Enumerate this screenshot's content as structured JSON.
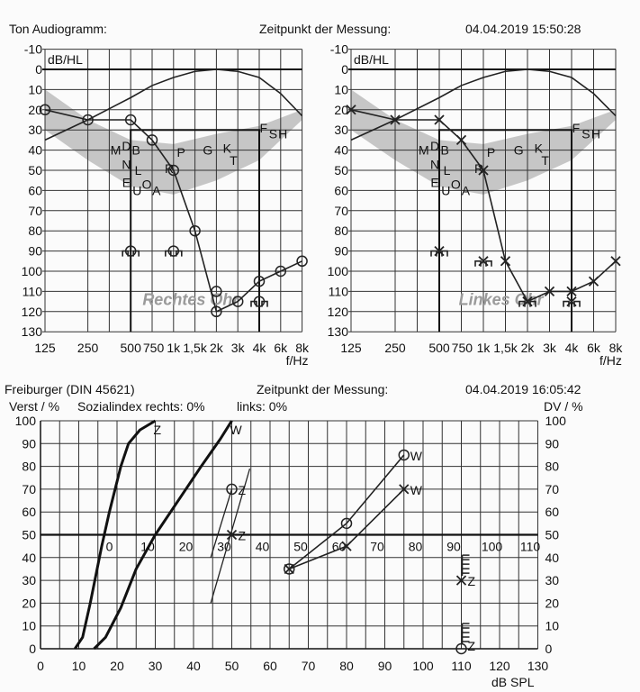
{
  "header": {
    "title": "Ton Audiogramm:",
    "measure_label": "Zeitpunkt der Messung:",
    "timestamp": "04.04.2019 15:50:28"
  },
  "speech_header": {
    "title": "Freiburger (DIN 45621)",
    "measure_label": "Zeitpunkt der Messung:",
    "timestamp": "04.04.2019 16:05:42",
    "y_label": "Verst / %",
    "social_index": "Sozialindex rechts: 0%",
    "links": "links: 0%",
    "y2_label": "DV / %"
  },
  "chart_data": [
    {
      "type": "line",
      "title": "Rechtes Ohr",
      "ylabel": "dB/HL",
      "xlabel": "f/Hz",
      "ylim": [
        -10,
        130
      ],
      "x_ticks": [
        "125",
        "250",
        "500",
        "750",
        "1k",
        "1,5k",
        "2k",
        "3k",
        "4k",
        "6k",
        "8k"
      ],
      "y_ticks": [
        "-10",
        "0",
        "10",
        "20",
        "30",
        "40",
        "50",
        "60",
        "70",
        "80",
        "90",
        "100",
        "110",
        "120",
        "130"
      ],
      "phonemes": [
        "M",
        "D",
        "B",
        "N",
        "L",
        "E",
        "U",
        "O",
        "A",
        "R",
        "P",
        "G",
        "K",
        "T",
        "F",
        "S",
        "H"
      ],
      "air_conduction": {
        "marker": "circle",
        "x": [
          "125",
          "250",
          "500",
          "750",
          "1k",
          "1,5k",
          "2k",
          "3k",
          "4k",
          "6k",
          "8k"
        ],
        "values": [
          20,
          25,
          25,
          35,
          50,
          80,
          120,
          115,
          105,
          100,
          95
        ]
      },
      "extra_points": [
        {
          "x": "2k",
          "value": 110
        }
      ],
      "bone_conduction": {
        "marker": "circle-bracket",
        "x": [
          "500",
          "1k",
          "4k"
        ],
        "values": [
          90,
          90,
          115
        ]
      },
      "uncomfortable_box": {
        "from": "500",
        "to": "4k",
        "level": 30
      }
    },
    {
      "type": "line",
      "title": "Linkes Ohr",
      "ylabel": "dB/HL",
      "xlabel": "f/Hz",
      "ylim": [
        -10,
        130
      ],
      "x_ticks": [
        "125",
        "250",
        "500",
        "750",
        "1k",
        "1,5k",
        "2k",
        "3k",
        "4k",
        "6k",
        "8k"
      ],
      "y_ticks": [
        "-10",
        "0",
        "10",
        "20",
        "30",
        "40",
        "50",
        "60",
        "70",
        "80",
        "90",
        "100",
        "110",
        "120",
        "130"
      ],
      "phonemes": [
        "M",
        "D",
        "B",
        "N",
        "L",
        "E",
        "U",
        "O",
        "A",
        "R",
        "P",
        "G",
        "K",
        "T",
        "F",
        "S",
        "H"
      ],
      "air_conduction": {
        "marker": "x",
        "x": [
          "125",
          "250",
          "500",
          "750",
          "1k",
          "1,5k",
          "2k",
          "3k",
          "4k",
          "6k",
          "8k"
        ],
        "values": [
          20,
          25,
          25,
          35,
          50,
          95,
          115,
          110,
          110,
          105,
          95
        ]
      },
      "extra_points": [],
      "bone_conduction": {
        "marker": "x-bracket",
        "x": [
          "500",
          "1k",
          "2k",
          "4k"
        ],
        "values": [
          90,
          95,
          115,
          115
        ]
      },
      "uncomfortable_box": {
        "from": "500",
        "to": "4k",
        "level": 30
      }
    },
    {
      "type": "line",
      "title": "Freiburger (DIN 45621)",
      "xlabel": "dB SPL",
      "ylabel": "Verst / %",
      "y2label": "DV / %",
      "xlim": [
        0,
        130
      ],
      "ylim": [
        0,
        100
      ],
      "x_ticks": [
        "0",
        "10",
        "20",
        "30",
        "40",
        "50",
        "60",
        "70",
        "80",
        "90",
        "100",
        "110",
        "120",
        "130"
      ],
      "y_ticks": [
        "0",
        "10",
        "20",
        "30",
        "40",
        "50",
        "60",
        "70",
        "80",
        "90",
        "100"
      ],
      "y2_ticks": [
        "100",
        "90",
        "80",
        "70",
        "60",
        "50",
        "40",
        "30",
        "20",
        "10",
        "0"
      ],
      "hl_ticks": [
        "0",
        "10",
        "20",
        "30",
        "40",
        "50",
        "60",
        "70",
        "80",
        "90",
        "100",
        "110"
      ],
      "normal_curves": [
        {
          "name": "Z",
          "points": [
            [
              9,
              0
            ],
            [
              11,
              5
            ],
            [
              13,
              20
            ],
            [
              16,
              45
            ],
            [
              18,
              60
            ],
            [
              21,
              80
            ],
            [
              23,
              90
            ],
            [
              26,
              96
            ],
            [
              30,
              100
            ]
          ]
        },
        {
          "name": "W",
          "points": [
            [
              14,
              0
            ],
            [
              17,
              5
            ],
            [
              21,
              18
            ],
            [
              25,
              35
            ],
            [
              30,
              50
            ],
            [
              36,
              65
            ],
            [
              42,
              80
            ],
            [
              47,
              92
            ],
            [
              50,
              100
            ]
          ]
        }
      ],
      "ref_lines": [
        [
          [
            44.5,
            40
          ],
          [
            50,
            70
          ]
        ],
        [
          [
            44.5,
            20
          ],
          [
            54.7,
            79
          ]
        ]
      ],
      "series": [
        {
          "name": "W",
          "ear": "right",
          "marker": "circle",
          "points": [
            [
              65,
              35
            ],
            [
              80,
              55
            ],
            [
              95,
              85
            ]
          ]
        },
        {
          "name": "W",
          "ear": "left",
          "marker": "x",
          "points": [
            [
              65,
              35
            ],
            [
              80,
              45
            ],
            [
              95,
              70
            ]
          ]
        },
        {
          "name": "Z",
          "ear": "right",
          "marker": "circle",
          "points": [
            [
              50,
              70
            ]
          ]
        },
        {
          "name": "Z",
          "ear": "left",
          "marker": "x",
          "points": [
            [
              50,
              50
            ]
          ]
        },
        {
          "name": "Z",
          "ear": "left",
          "marker": "x-limit",
          "points": [
            [
              110,
              30
            ]
          ]
        },
        {
          "name": "Z",
          "ear": "right",
          "marker": "circle-limit",
          "points": [
            [
              110,
              0
            ]
          ]
        }
      ]
    }
  ]
}
